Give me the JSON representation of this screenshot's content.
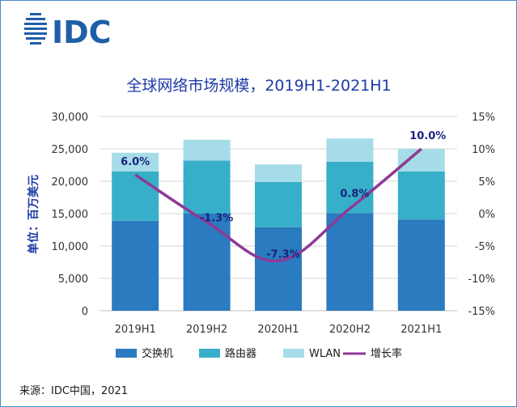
{
  "logo": {
    "text": "IDC"
  },
  "chart_data": {
    "type": "bar",
    "stacked": true,
    "title": "全球网络市场规模，2019H1-2021H1",
    "ylabel": "单位：百万美元",
    "ylim": [
      0,
      30000
    ],
    "yticks": [
      "30,000",
      "25,000",
      "20,000",
      "15,000",
      "10,000",
      "5,000",
      "0"
    ],
    "y2lim": [
      -15,
      15
    ],
    "y2ticks": [
      "15%",
      "10%",
      "5%",
      "0%",
      "-5%",
      "-10%",
      "-15%"
    ],
    "categories": [
      "2019H1",
      "2019H2",
      "2020H1",
      "2020H2",
      "2021H1"
    ],
    "series": [
      {
        "name": "交换机",
        "color": "#2a7bbf",
        "values": [
          13900,
          15000,
          12900,
          15100,
          14100
        ]
      },
      {
        "name": "路由器",
        "color": "#38afc9",
        "values": [
          7600,
          8200,
          7000,
          7900,
          7400
        ]
      },
      {
        "name": "WLAN",
        "color": "#a6dce7",
        "values": [
          2900,
          3200,
          2700,
          3600,
          3500
        ]
      }
    ],
    "line": {
      "name": "增长率",
      "color": "#8e3a96",
      "values": [
        6.0,
        -1.3,
        -7.3,
        0.8,
        10.0
      ],
      "labels": [
        "6.0%",
        "-1.3%",
        "-7.3%",
        "0.8%",
        "10.0%"
      ]
    }
  },
  "source": "来源：IDC中国，2021"
}
